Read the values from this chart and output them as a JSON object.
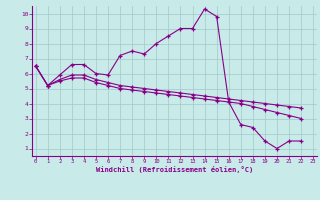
{
  "xlabel": "Windchill (Refroidissement éolien,°C)",
  "bg_color": "#c8eae8",
  "line_color": "#880088",
  "grid_color": "#a0c8c8",
  "xlim": [
    -0.3,
    23.3
  ],
  "ylim": [
    0.5,
    10.5
  ],
  "xticks": [
    0,
    1,
    2,
    3,
    4,
    5,
    6,
    7,
    8,
    9,
    10,
    11,
    12,
    13,
    14,
    15,
    16,
    17,
    18,
    19,
    20,
    21,
    22,
    23
  ],
  "yticks": [
    1,
    2,
    3,
    4,
    5,
    6,
    7,
    8,
    9,
    10
  ],
  "curve1_x": [
    0,
    1,
    2,
    3,
    4,
    5,
    6,
    7,
    8,
    9,
    10,
    11,
    12,
    13,
    14,
    15,
    16,
    17,
    18,
    19,
    20,
    21,
    22
  ],
  "curve1_y": [
    6.5,
    5.2,
    5.9,
    6.6,
    6.6,
    6.0,
    5.9,
    7.2,
    7.5,
    7.3,
    8.0,
    8.5,
    9.0,
    9.0,
    10.3,
    9.8,
    4.1,
    2.6,
    2.4,
    1.5,
    1.0,
    1.5,
    1.5
  ],
  "curve2_x": [
    0,
    1,
    2,
    3,
    4,
    5,
    6,
    7,
    8,
    9,
    10,
    11,
    12,
    13,
    14,
    15,
    16,
    17,
    18,
    19,
    20,
    21,
    22
  ],
  "curve2_y": [
    6.5,
    5.2,
    5.6,
    5.9,
    5.9,
    5.6,
    5.4,
    5.2,
    5.1,
    5.0,
    4.9,
    4.8,
    4.7,
    4.6,
    4.5,
    4.4,
    4.3,
    4.2,
    4.1,
    4.0,
    3.9,
    3.8,
    3.7
  ],
  "curve3_x": [
    0,
    1,
    2,
    3,
    4,
    5,
    6,
    7,
    8,
    9,
    10,
    11,
    12,
    13,
    14,
    15,
    16,
    17,
    18,
    19,
    20,
    21,
    22
  ],
  "curve3_y": [
    6.5,
    5.2,
    5.5,
    5.7,
    5.7,
    5.4,
    5.2,
    5.0,
    4.9,
    4.8,
    4.7,
    4.6,
    4.5,
    4.4,
    4.3,
    4.2,
    4.1,
    4.0,
    3.8,
    3.6,
    3.4,
    3.2,
    3.0
  ]
}
